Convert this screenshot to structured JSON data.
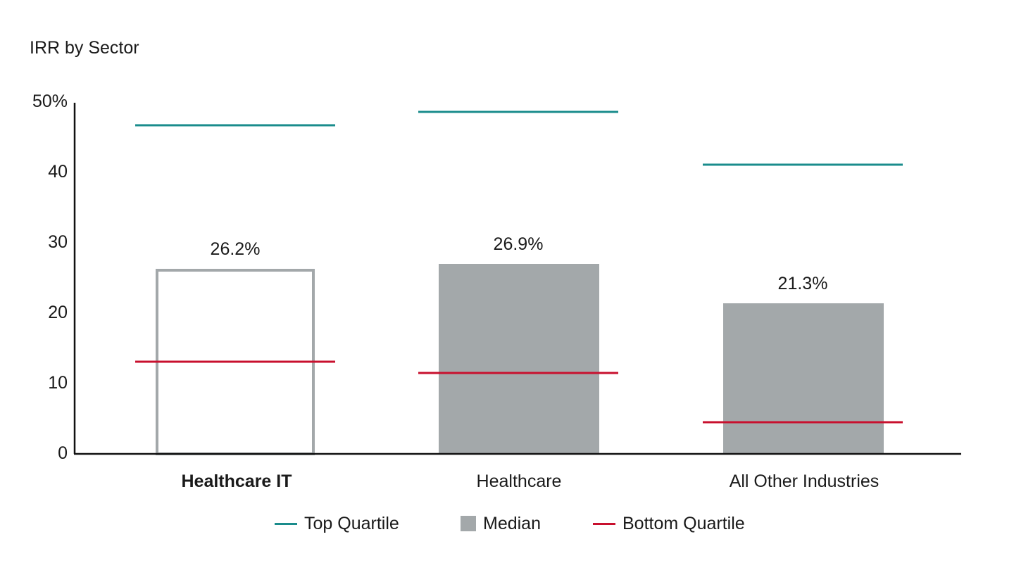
{
  "chart_data": {
    "type": "bar",
    "title": "IRR by Sector",
    "categories": [
      "Healthcare IT",
      "Healthcare",
      "All Other Industries"
    ],
    "highlight_category": "Healthcare IT",
    "series": [
      {
        "name": "Median",
        "values": [
          26.2,
          26.9,
          21.3
        ],
        "labels": [
          "26.2%",
          "26.9%",
          "21.3%"
        ],
        "color": "#a3a8aa",
        "style": [
          "outline",
          "filled",
          "filled"
        ]
      },
      {
        "name": "Top Quartile",
        "values": [
          46.6,
          48.5,
          41.0
        ],
        "color": "#1a8c8c",
        "style": "line"
      },
      {
        "name": "Bottom Quartile",
        "values": [
          13.0,
          11.4,
          4.4
        ],
        "color": "#c8102e",
        "style": "line"
      }
    ],
    "yticks": [
      "0",
      "10",
      "20",
      "30",
      "40",
      "50%"
    ],
    "ylim": [
      0,
      50
    ],
    "grid": false,
    "legend_position": "bottom-center",
    "xlabel": "",
    "ylabel": ""
  },
  "legend": {
    "top_quartile": "Top Quartile",
    "median": "Median",
    "bottom_quartile": "Bottom Quartile"
  },
  "colors": {
    "top_quartile": "#1a8c8c",
    "median": "#a3a8aa",
    "bottom_quartile": "#c8102e",
    "axis": "#111111"
  }
}
